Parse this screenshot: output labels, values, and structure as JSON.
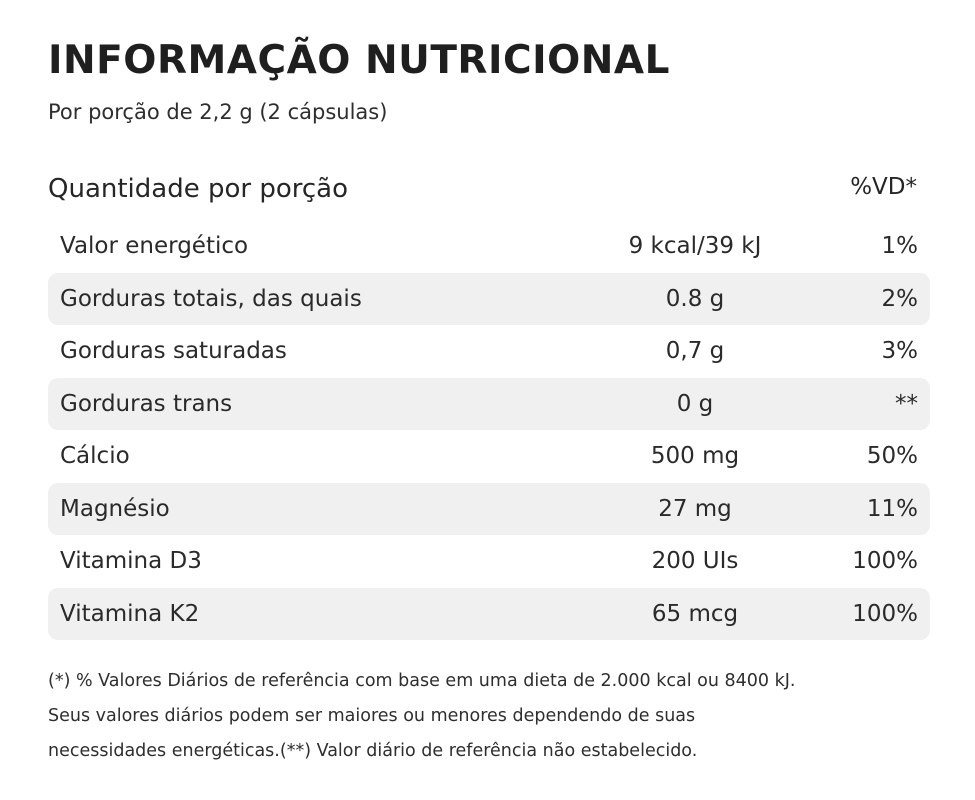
{
  "title": "INFORMAÇÃO NUTRICIONAL",
  "subtitle": "Por porção de 2,2 g (2 cápsulas)",
  "header": {
    "label": "Quantidade por porção",
    "vd": "%VD*"
  },
  "rows": [
    {
      "name": "Valor energético",
      "amount": "9 kcal/39 kJ",
      "vd": "1%"
    },
    {
      "name": "Gorduras totais, das quais",
      "amount": "0.8 g",
      "vd": "2%"
    },
    {
      "name": "Gorduras saturadas",
      "amount": "0,7 g",
      "vd": "3%"
    },
    {
      "name": "Gorduras trans",
      "amount": "0 g",
      "vd": "**"
    },
    {
      "name": "Cálcio",
      "amount": "500 mg",
      "vd": "50%"
    },
    {
      "name": "Magnésio",
      "amount": "27 mg",
      "vd": "11%"
    },
    {
      "name": "Vitamina D3",
      "amount": "200 UIs",
      "vd": "100%"
    },
    {
      "name": "Vitamina K2",
      "amount": "65 mcg",
      "vd": "100%"
    }
  ],
  "footnote": {
    "line1": "(*) % Valores Diários de referência com base em uma dieta de 2.000 kcal ou 8400 kJ.",
    "line2": "Seus valores diários podem ser maiores ou menores dependendo de suas",
    "line3": "necessidades energéticas.(**) Valor diário de referência não estabelecido."
  },
  "colors": {
    "text": "#262626",
    "row_shade": "#f0f0f0",
    "background": "#ffffff"
  }
}
